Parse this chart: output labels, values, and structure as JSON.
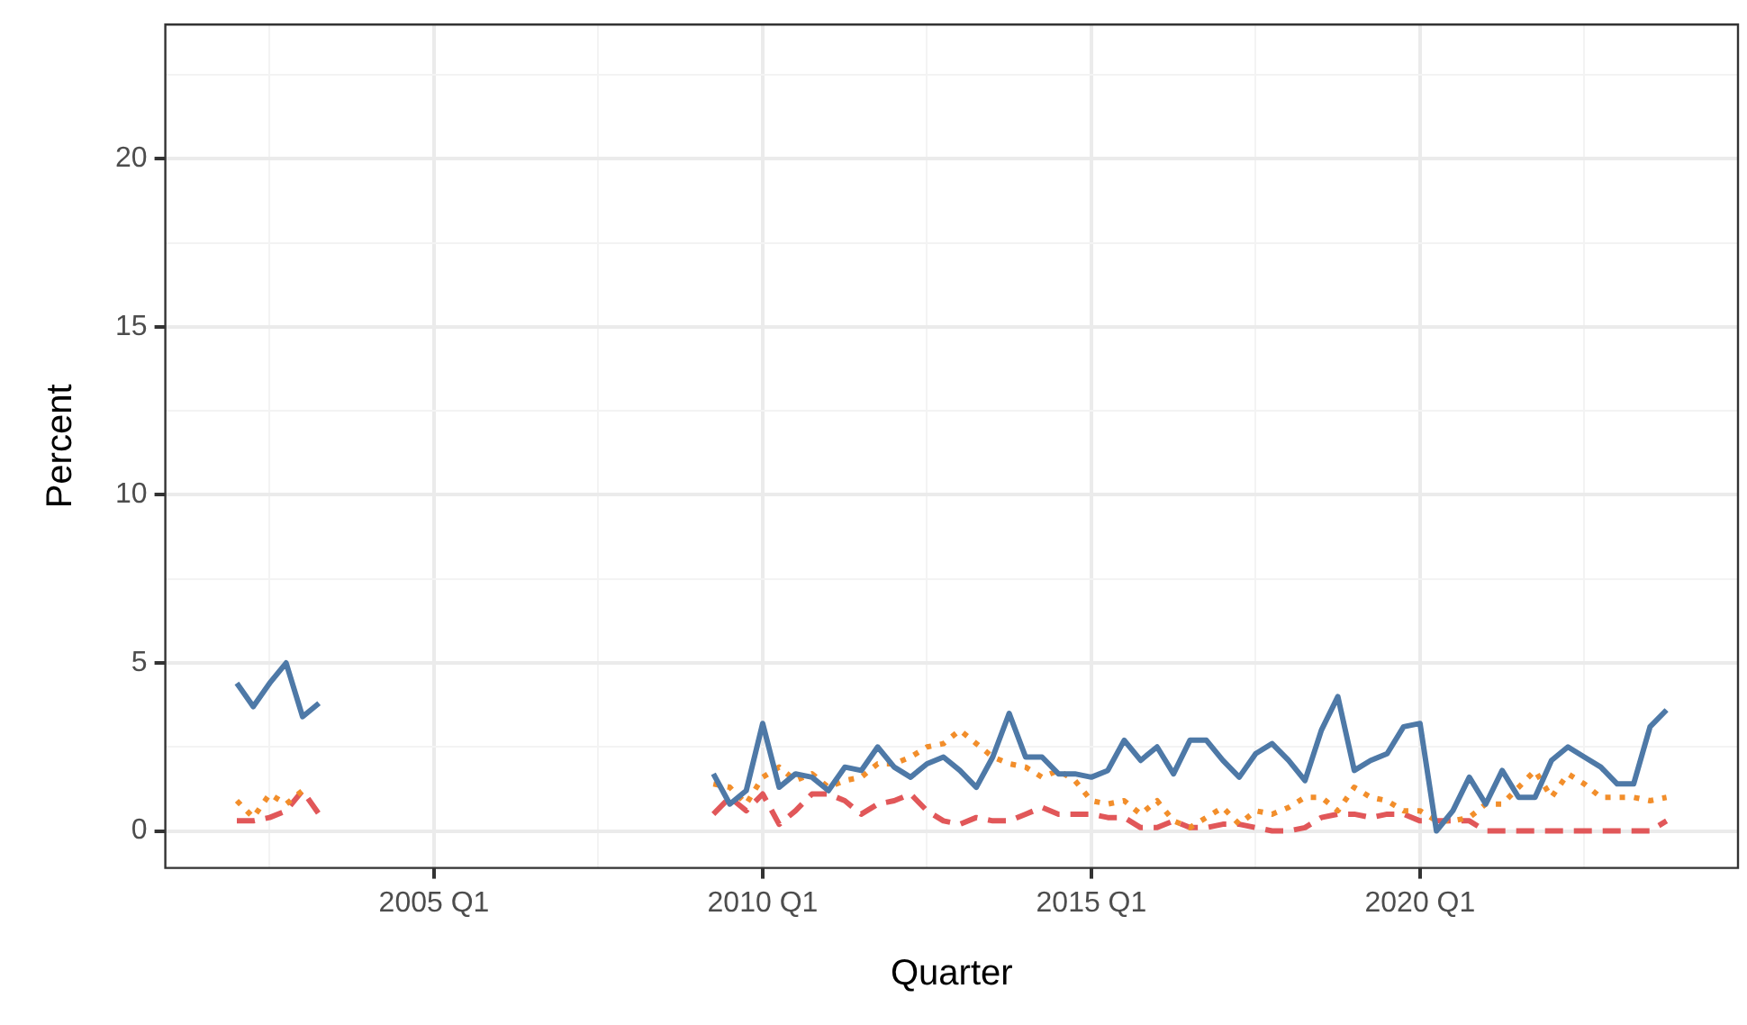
{
  "chart_data": {
    "type": "line",
    "xlabel": "Quarter",
    "ylabel": "Percent",
    "grid": true,
    "legend": false,
    "marker": "none",
    "ylim": [
      -1.1,
      24
    ],
    "yticks": [
      0,
      {
        "value": 2.5,
        "label": null
      },
      5,
      {
        "value": 7.5,
        "label": null
      },
      10,
      {
        "value": 12.5,
        "label": null
      },
      15,
      {
        "value": 17.5,
        "label": null
      },
      20,
      {
        "value": 22.5,
        "label": null
      }
    ],
    "categories": [
      null,
      null,
      null,
      null,
      null,
      null,
      null,
      null,
      null,
      null,
      null,
      null,
      "2005 Q1",
      null,
      null,
      null,
      null,
      null,
      null,
      null,
      null,
      null,
      null,
      null,
      null,
      null,
      null,
      null,
      null,
      null,
      null,
      null,
      "2010 Q1",
      null,
      null,
      null,
      null,
      null,
      null,
      null,
      null,
      null,
      null,
      null,
      null,
      null,
      null,
      null,
      null,
      null,
      null,
      null,
      "2015 Q1",
      null,
      null,
      null,
      null,
      null,
      null,
      null,
      null,
      null,
      null,
      null,
      null,
      null,
      null,
      null,
      null,
      null,
      null,
      null,
      "2020 Q1",
      null,
      null,
      null,
      null,
      null,
      null,
      null,
      null,
      null,
      null,
      null,
      null,
      null,
      null,
      null
    ],
    "series": [
      {
        "color": "#4e79a7",
        "line_style": "solid",
        "values": [
          4.4,
          3.7,
          4.4,
          5.0,
          3.4,
          3.8,
          null,
          null,
          null,
          null,
          null,
          null,
          null,
          null,
          null,
          null,
          null,
          null,
          null,
          null,
          null,
          null,
          null,
          null,
          null,
          null,
          null,
          null,
          null,
          1.7,
          0.8,
          1.2,
          3.2,
          1.3,
          1.7,
          1.6,
          1.2,
          1.9,
          1.8,
          2.5,
          1.9,
          1.6,
          2.0,
          2.2,
          1.8,
          1.3,
          2.2,
          3.5,
          2.2,
          2.2,
          1.7,
          1.7,
          1.6,
          1.8,
          2.7,
          2.1,
          2.5,
          1.7,
          2.7,
          2.7,
          2.1,
          1.6,
          2.3,
          2.6,
          2.1,
          1.5,
          3.0,
          4.0,
          1.8,
          2.1,
          2.3,
          3.1,
          3.2,
          0.0,
          0.6,
          1.6,
          0.8,
          1.8,
          1.0,
          1.0,
          2.1,
          2.5,
          2.2,
          1.9,
          1.4,
          1.4,
          3.1,
          3.6
        ]
      },
      {
        "color": "#f28e2b",
        "line_style": "dotted",
        "values": [
          0.9,
          0.4,
          1.1,
          0.8,
          1.2,
          null,
          null,
          null,
          null,
          null,
          null,
          null,
          null,
          null,
          null,
          null,
          null,
          null,
          null,
          null,
          null,
          null,
          null,
          null,
          null,
          null,
          null,
          null,
          null,
          1.4,
          1.3,
          0.8,
          1.6,
          1.9,
          1.5,
          1.7,
          1.3,
          1.5,
          1.6,
          2.0,
          2.0,
          2.2,
          2.5,
          2.6,
          3.0,
          2.6,
          2.2,
          2.0,
          1.9,
          1.6,
          1.8,
          1.5,
          0.9,
          0.8,
          0.9,
          0.5,
          0.9,
          0.3,
          0.1,
          0.4,
          0.7,
          0.2,
          0.6,
          0.5,
          0.7,
          1.0,
          1.0,
          0.6,
          1.3,
          1.0,
          0.9,
          0.6,
          0.6,
          0.3,
          0.3,
          0.4,
          0.8,
          0.8,
          1.3,
          1.8,
          1.0,
          1.7,
          1.4,
          1.0,
          1.0,
          1.0,
          0.9,
          1.0
        ]
      },
      {
        "color": "#e15759",
        "line_style": "dashed",
        "values": [
          0.3,
          0.3,
          0.4,
          0.6,
          1.2,
          0.5,
          null,
          null,
          null,
          null,
          null,
          null,
          null,
          null,
          null,
          null,
          null,
          null,
          null,
          null,
          null,
          null,
          null,
          null,
          null,
          null,
          null,
          null,
          null,
          0.5,
          1.0,
          0.6,
          1.1,
          0.2,
          0.6,
          1.1,
          1.1,
          0.9,
          0.5,
          0.8,
          0.9,
          1.1,
          0.6,
          0.3,
          0.2,
          0.4,
          0.3,
          0.3,
          0.5,
          0.7,
          0.5,
          0.5,
          0.5,
          0.4,
          0.4,
          0.1,
          0.1,
          0.3,
          0.1,
          0.1,
          0.2,
          0.2,
          0.1,
          0.0,
          0.0,
          0.1,
          0.4,
          0.5,
          0.5,
          0.4,
          0.5,
          0.5,
          0.3,
          0.3,
          0.3,
          0.3,
          0.0,
          0.0,
          0.0,
          0.0,
          0.0,
          0.0,
          0.0,
          0.0,
          0.0,
          0.0,
          0.0,
          0.3
        ]
      }
    ]
  }
}
